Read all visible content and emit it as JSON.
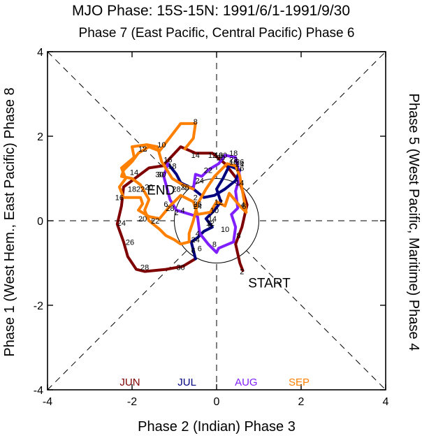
{
  "chart_data": {
    "type": "line",
    "title": "MJO Phase: 15S-15N: 1991/6/1-1991/9/30",
    "top_label": "Phase 7 (East Pacific, Central Pacific) Phase 6",
    "xlabel": "Phase 2 (Indian) Phase 3",
    "ylabel_left": "Phase 1 (West Hem., East Pacific) Phase 8",
    "ylabel_right": "Phase 5 (West Pacific, Maritime) Phase 4",
    "xlim": [
      -4,
      4
    ],
    "ylim": [
      -4,
      4
    ],
    "xticks": [
      "-4",
      "-2",
      "0",
      "2",
      "4"
    ],
    "yticks": [
      "-4",
      "-2",
      "0",
      "2",
      "4"
    ],
    "reference_lines": "dashed diagonals and axes through origin",
    "unit_circle_radius": 1,
    "start_label": "START",
    "end_label": "END",
    "series": [
      {
        "name": "JUN",
        "color": "#7f0000",
        "points": [
          [
            0.62,
            -1.18
          ],
          [
            0.55,
            -1.0
          ],
          [
            0.45,
            -0.55
          ],
          [
            0.6,
            -0.15
          ],
          [
            0.72,
            0.38
          ],
          [
            0.55,
            0.9
          ],
          [
            0.2,
            1.35
          ],
          [
            -0.1,
            1.6
          ],
          [
            -0.5,
            1.6
          ],
          [
            -0.85,
            1.75
          ],
          [
            -1.27,
            1.3
          ],
          [
            -1.6,
            1.25
          ],
          [
            -2.0,
            0.95
          ],
          [
            -2.2,
            0.8
          ],
          [
            -2.25,
            0.35
          ],
          [
            -2.35,
            -0.08
          ],
          [
            -2.2,
            -0.5
          ],
          [
            -2.1,
            -0.85
          ],
          [
            -1.9,
            -1.15
          ],
          [
            -1.7,
            -1.2
          ],
          [
            -1.2,
            -1.15
          ],
          [
            -0.8,
            -1.08
          ],
          [
            -0.5,
            -0.9
          ]
        ],
        "labels": [
          {
            "t": "2",
            "x": 0.6,
            "y": -1.2
          },
          {
            "t": "4",
            "x": 0.62,
            "y": 0.38
          },
          {
            "t": "6",
            "x": 0.65,
            "y": 0.35
          },
          {
            "t": "8",
            "x": 0.52,
            "y": -0.35
          },
          {
            "t": "10",
            "x": 0.05,
            "y": 1.55
          },
          {
            "t": "12",
            "x": -0.1,
            "y": 1.55
          },
          {
            "t": "14",
            "x": -0.5,
            "y": 1.55
          },
          {
            "t": "16",
            "x": -1.15,
            "y": 1.45
          },
          {
            "t": "18",
            "x": -1.05,
            "y": 1.3
          },
          {
            "t": "20",
            "x": -1.6,
            "y": 0.8
          },
          {
            "t": "22",
            "x": -1.8,
            "y": 0.75
          },
          {
            "t": "24",
            "x": -2.25,
            "y": -0.05
          },
          {
            "t": "26",
            "x": -2.05,
            "y": -0.5
          },
          {
            "t": "28",
            "x": -1.7,
            "y": -1.1
          },
          {
            "t": "30",
            "x": -0.85,
            "y": -1.1
          }
        ]
      },
      {
        "name": "JUL",
        "color": "#00007f",
        "points": [
          [
            -0.5,
            -0.9
          ],
          [
            -0.6,
            -0.5
          ],
          [
            -0.45,
            -0.4
          ],
          [
            -0.3,
            -0.25
          ],
          [
            -0.1,
            -0.15
          ],
          [
            -0.25,
            0.05
          ],
          [
            -0.05,
            0.25
          ],
          [
            0.1,
            0.45
          ],
          [
            0.0,
            0.75
          ],
          [
            0.15,
            1.0
          ],
          [
            0.3,
            1.3
          ],
          [
            0.55,
            1.2
          ],
          [
            0.45,
            0.95
          ],
          [
            0.2,
            0.75
          ],
          [
            -0.05,
            0.6
          ],
          [
            -0.3,
            0.55
          ],
          [
            -0.55,
            0.75
          ],
          [
            -0.75,
            0.85
          ],
          [
            -0.85,
            0.9
          ],
          [
            -0.95,
            1.1
          ],
          [
            -1.15,
            1.35
          ]
        ],
        "labels": [
          {
            "t": "2",
            "x": -0.55,
            "y": -0.45
          },
          {
            "t": "4",
            "x": -0.45,
            "y": -0.45
          },
          {
            "t": "6",
            "x": -0.4,
            "y": -0.65
          },
          {
            "t": "8",
            "x": -0.15,
            "y": -0.1
          },
          {
            "t": "10",
            "x": -0.05,
            "y": 0.25
          },
          {
            "t": "12",
            "x": -0.15,
            "y": -0.05
          },
          {
            "t": "14",
            "x": -0.1,
            "y": 0.05
          },
          {
            "t": "16",
            "x": 0.05,
            "y": 1.55
          },
          {
            "t": "18",
            "x": 0.4,
            "y": 1.4
          },
          {
            "t": "20",
            "x": 0.1,
            "y": 1.5
          },
          {
            "t": "22",
            "x": -0.2,
            "y": 1.2
          },
          {
            "t": "24",
            "x": -0.4,
            "y": 0.95
          },
          {
            "t": "26",
            "x": -0.75,
            "y": 0.8
          },
          {
            "t": "28",
            "x": -0.95,
            "y": 0.75
          },
          {
            "t": "30",
            "x": -1.35,
            "y": 1.1
          }
        ]
      },
      {
        "name": "AUG",
        "color": "#7f1fff",
        "points": [
          [
            -1.15,
            1.35
          ],
          [
            -1.25,
            1.05
          ],
          [
            -1.1,
            0.5
          ],
          [
            -0.95,
            0.25
          ],
          [
            -0.45,
            0.1
          ],
          [
            -0.4,
            -0.3
          ],
          [
            -0.2,
            -0.55
          ],
          [
            0.0,
            -0.75
          ],
          [
            0.05,
            -0.65
          ],
          [
            0.4,
            -0.5
          ],
          [
            0.45,
            -0.15
          ],
          [
            0.35,
            0.15
          ],
          [
            0.5,
            0.3
          ],
          [
            0.45,
            0.7
          ],
          [
            0.55,
            1.05
          ],
          [
            0.45,
            1.5
          ],
          [
            0.2,
            1.55
          ],
          [
            0.05,
            1.35
          ],
          [
            -0.2,
            1.2
          ],
          [
            -0.35,
            1.05
          ],
          [
            -0.5,
            1.1
          ],
          [
            -0.55,
            0.75
          ]
        ],
        "labels": [
          {
            "t": "2",
            "x": -0.95,
            "y": 0.2
          },
          {
            "t": "4",
            "x": -0.45,
            "y": -0.3
          },
          {
            "t": "6",
            "x": -0.55,
            "y": -0.7
          },
          {
            "t": "8",
            "x": -0.05,
            "y": -0.55
          },
          {
            "t": "10",
            "x": 0.2,
            "y": -0.2
          },
          {
            "t": "12",
            "x": 0.05,
            "y": 0.45
          },
          {
            "t": "14",
            "x": 0.55,
            "y": 0.9
          },
          {
            "t": "16",
            "x": 0.55,
            "y": 1.25
          },
          {
            "t": "18",
            "x": 0.4,
            "y": 1.6
          },
          {
            "t": "20",
            "x": 0.15,
            "y": 1.55
          },
          {
            "t": "22",
            "x": 0.4,
            "y": 1.45
          },
          {
            "t": "24",
            "x": 0.55,
            "y": 1.35
          },
          {
            "t": "26",
            "x": 0.55,
            "y": 1.4
          }
        ]
      },
      {
        "name": "SEP",
        "color": "#ff7f00",
        "points": [
          [
            -0.55,
            0.75
          ],
          [
            -0.8,
            0.85
          ],
          [
            -1.05,
            1.0
          ],
          [
            -1.3,
            1.4
          ],
          [
            -1.4,
            1.75
          ],
          [
            -1.65,
            1.8
          ],
          [
            -2.0,
            1.75
          ],
          [
            -1.95,
            1.5
          ],
          [
            -2.25,
            1.25
          ],
          [
            -2.15,
            1.0
          ],
          [
            -2.3,
            0.8
          ],
          [
            -2.2,
            0.55
          ],
          [
            -1.8,
            0.55
          ],
          [
            -1.75,
            0.4
          ],
          [
            -1.85,
            0.25
          ],
          [
            -1.6,
            0.1
          ],
          [
            -1.35,
            0.05
          ],
          [
            -1.1,
            0.35
          ],
          [
            -0.85,
            0.6
          ],
          [
            -0.55,
            0.45
          ],
          [
            -0.45,
            0.15
          ],
          [
            -0.15,
            0.2
          ],
          [
            0.0,
            0.45
          ],
          [
            0.2,
            0.35
          ],
          [
            0.3,
            0.65
          ],
          [
            0.55,
            0.35
          ],
          [
            0.7,
            0.2
          ],
          [
            0.55,
            1.05
          ],
          [
            0.45,
            1.3
          ],
          [
            0.25,
            1.35
          ],
          [
            -0.05,
            1.05
          ],
          [
            -0.25,
            0.75
          ],
          [
            -0.45,
            0.4
          ],
          [
            -0.55,
            0.0
          ],
          [
            -0.65,
            -0.3
          ],
          [
            -0.65,
            -0.5
          ],
          [
            -0.85,
            -0.55
          ],
          [
            -1.0,
            -0.45
          ],
          [
            -1.2,
            -0.35
          ],
          [
            -1.35,
            -0.2
          ],
          [
            -1.6,
            0.0
          ],
          [
            -1.7,
            0.25
          ],
          [
            -1.6,
            0.5
          ],
          [
            -1.8,
            0.85
          ],
          [
            -2.0,
            1.0
          ],
          [
            -2.25,
            1.05
          ],
          [
            -2.2,
            1.2
          ],
          [
            -2.0,
            1.4
          ],
          [
            -1.85,
            1.6
          ],
          [
            -1.6,
            1.75
          ],
          [
            -1.35,
            1.65
          ],
          [
            -0.85,
            2.3
          ],
          [
            -0.5,
            2.3
          ],
          [
            -0.55,
            1.95
          ],
          [
            -0.75,
            1.7
          ]
        ],
        "labels": [
          {
            "t": "2",
            "x": -0.5,
            "y": 0.55
          },
          {
            "t": "4",
            "x": -0.8,
            "y": 0.25
          },
          {
            "t": "6",
            "x": -1.2,
            "y": 0.4
          },
          {
            "t": "8",
            "x": -0.5,
            "y": 2.35
          },
          {
            "t": "10",
            "x": -1.3,
            "y": 1.8
          },
          {
            "t": "12",
            "x": -1.75,
            "y": 1.7
          },
          {
            "t": "14",
            "x": -1.95,
            "y": 1.15
          },
          {
            "t": "16",
            "x": -2.3,
            "y": 0.55
          },
          {
            "t": "18",
            "x": -2.0,
            "y": 0.75
          },
          {
            "t": "20",
            "x": -1.75,
            "y": 0.05
          },
          {
            "t": "22",
            "x": -1.45,
            "y": 0.0
          },
          {
            "t": "24",
            "x": -0.45,
            "y": 0.35
          },
          {
            "t": "26",
            "x": -0.45,
            "y": 0.4
          },
          {
            "t": "28",
            "x": -1.1,
            "y": 0.3
          },
          {
            "t": "30",
            "x": -1.3,
            "y": 1.1
          }
        ]
      }
    ],
    "start_pos": [
      0.62,
      -1.28
    ],
    "end_pos": [
      -1.35,
      0.75
    ],
    "legend": [
      {
        "label": "JUN",
        "color": "#7f0000"
      },
      {
        "label": "JUL",
        "color": "#00007f"
      },
      {
        "label": "AUG",
        "color": "#7f1fff"
      },
      {
        "label": "SEP",
        "color": "#ff7f00"
      }
    ],
    "legend_placement": "bottom, inside plot"
  }
}
